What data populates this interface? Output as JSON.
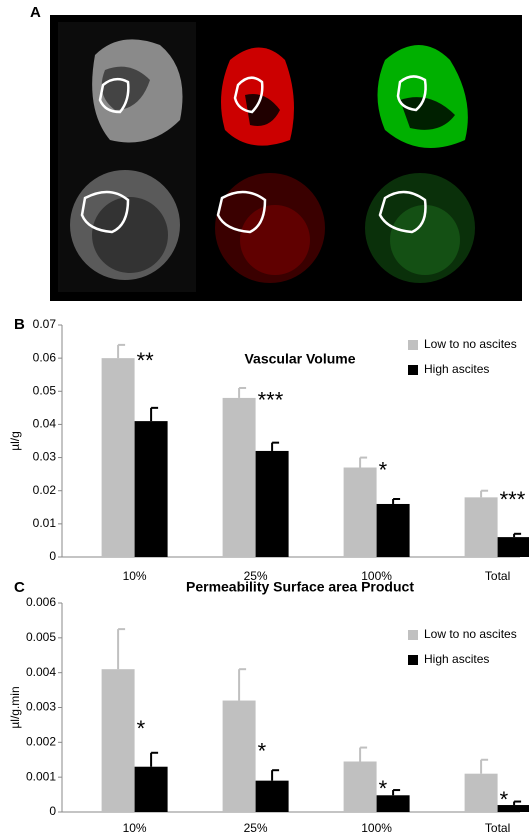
{
  "panel_labels": [
    "A",
    "B",
    "C"
  ],
  "chart_data": [
    {
      "type": "bar",
      "title": "Vascular Volume",
      "y_label": "µl/g",
      "categories": [
        "10%",
        "25%",
        "100%",
        "Total"
      ],
      "series": [
        {
          "name": "Low to no ascites",
          "color": "#c0c0c0",
          "values": [
            0.06,
            0.048,
            0.027,
            0.018
          ],
          "errors": [
            0.004,
            0.003,
            0.003,
            0.002
          ]
        },
        {
          "name": "High ascites",
          "color": "#000000",
          "values": [
            0.041,
            0.032,
            0.016,
            0.006
          ],
          "errors": [
            0.004,
            0.0025,
            0.0015,
            0.001
          ]
        }
      ],
      "annotations": [
        "**",
        "***",
        "*",
        "***"
      ],
      "ylim": [
        0,
        0.07
      ],
      "yticks": [
        0,
        0.01,
        0.02,
        0.03,
        0.04,
        0.05,
        0.06,
        0.07
      ],
      "legend": "upper right"
    },
    {
      "type": "bar",
      "title": "Permeability Surface area Product",
      "y_label": "µl/g.min",
      "categories": [
        "10%",
        "25%",
        "100%",
        "Total"
      ],
      "series": [
        {
          "name": "Low to no ascites",
          "color": "#c0c0c0",
          "values": [
            0.0041,
            0.0032,
            0.00145,
            0.0011
          ],
          "errors": [
            0.00115,
            0.0009,
            0.0004,
            0.0004
          ]
        },
        {
          "name": "High ascites",
          "color": "#000000",
          "values": [
            0.0013,
            0.0009,
            0.00048,
            0.0002
          ],
          "errors": [
            0.0004,
            0.0003,
            0.00015,
            0.0001
          ]
        }
      ],
      "annotations": [
        "*",
        "*",
        "*",
        "*"
      ],
      "ylim": [
        0,
        0.006
      ],
      "yticks": [
        0,
        0.001,
        0.002,
        0.003,
        0.004,
        0.005,
        0.006
      ],
      "legend": "upper right"
    }
  ]
}
